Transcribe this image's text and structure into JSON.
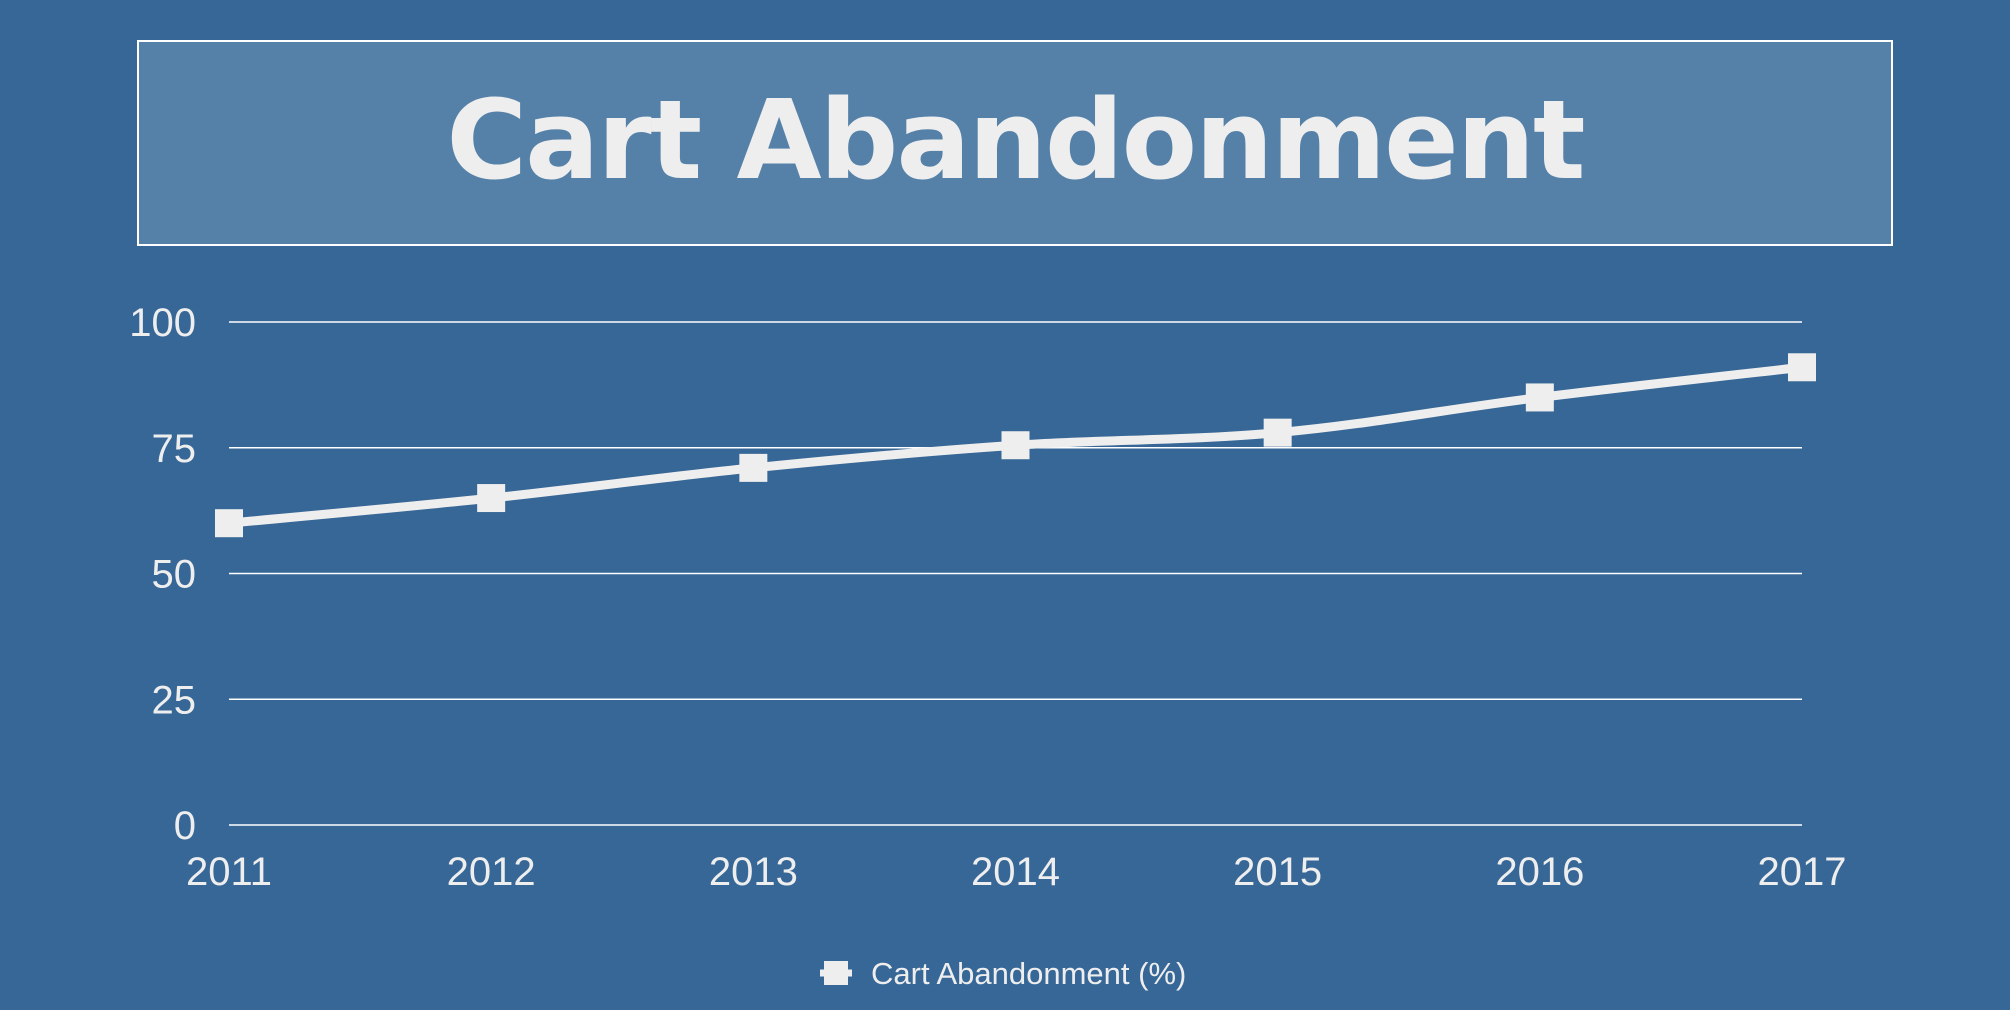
{
  "colors": {
    "background": "#376796",
    "title_box": "#5581a8",
    "border": "#ffffff",
    "line": "#eeeeee",
    "text": "#eeeeee",
    "grid": "#ffffff"
  },
  "chart_data": {
    "type": "line",
    "title": "Cart Abandonment",
    "xlabel": "",
    "ylabel": "",
    "x": [
      "2011",
      "2012",
      "2013",
      "2014",
      "2015",
      "2016",
      "2017"
    ],
    "series": [
      {
        "name": "Cart Abandonment (%)",
        "values": [
          60,
          65,
          71,
          75.5,
          78,
          85,
          91
        ]
      }
    ],
    "ylim": [
      0,
      100
    ],
    "yticks": [
      0,
      25,
      50,
      75,
      100
    ],
    "grid": true,
    "legend": "bottom-center",
    "marker": "square"
  }
}
